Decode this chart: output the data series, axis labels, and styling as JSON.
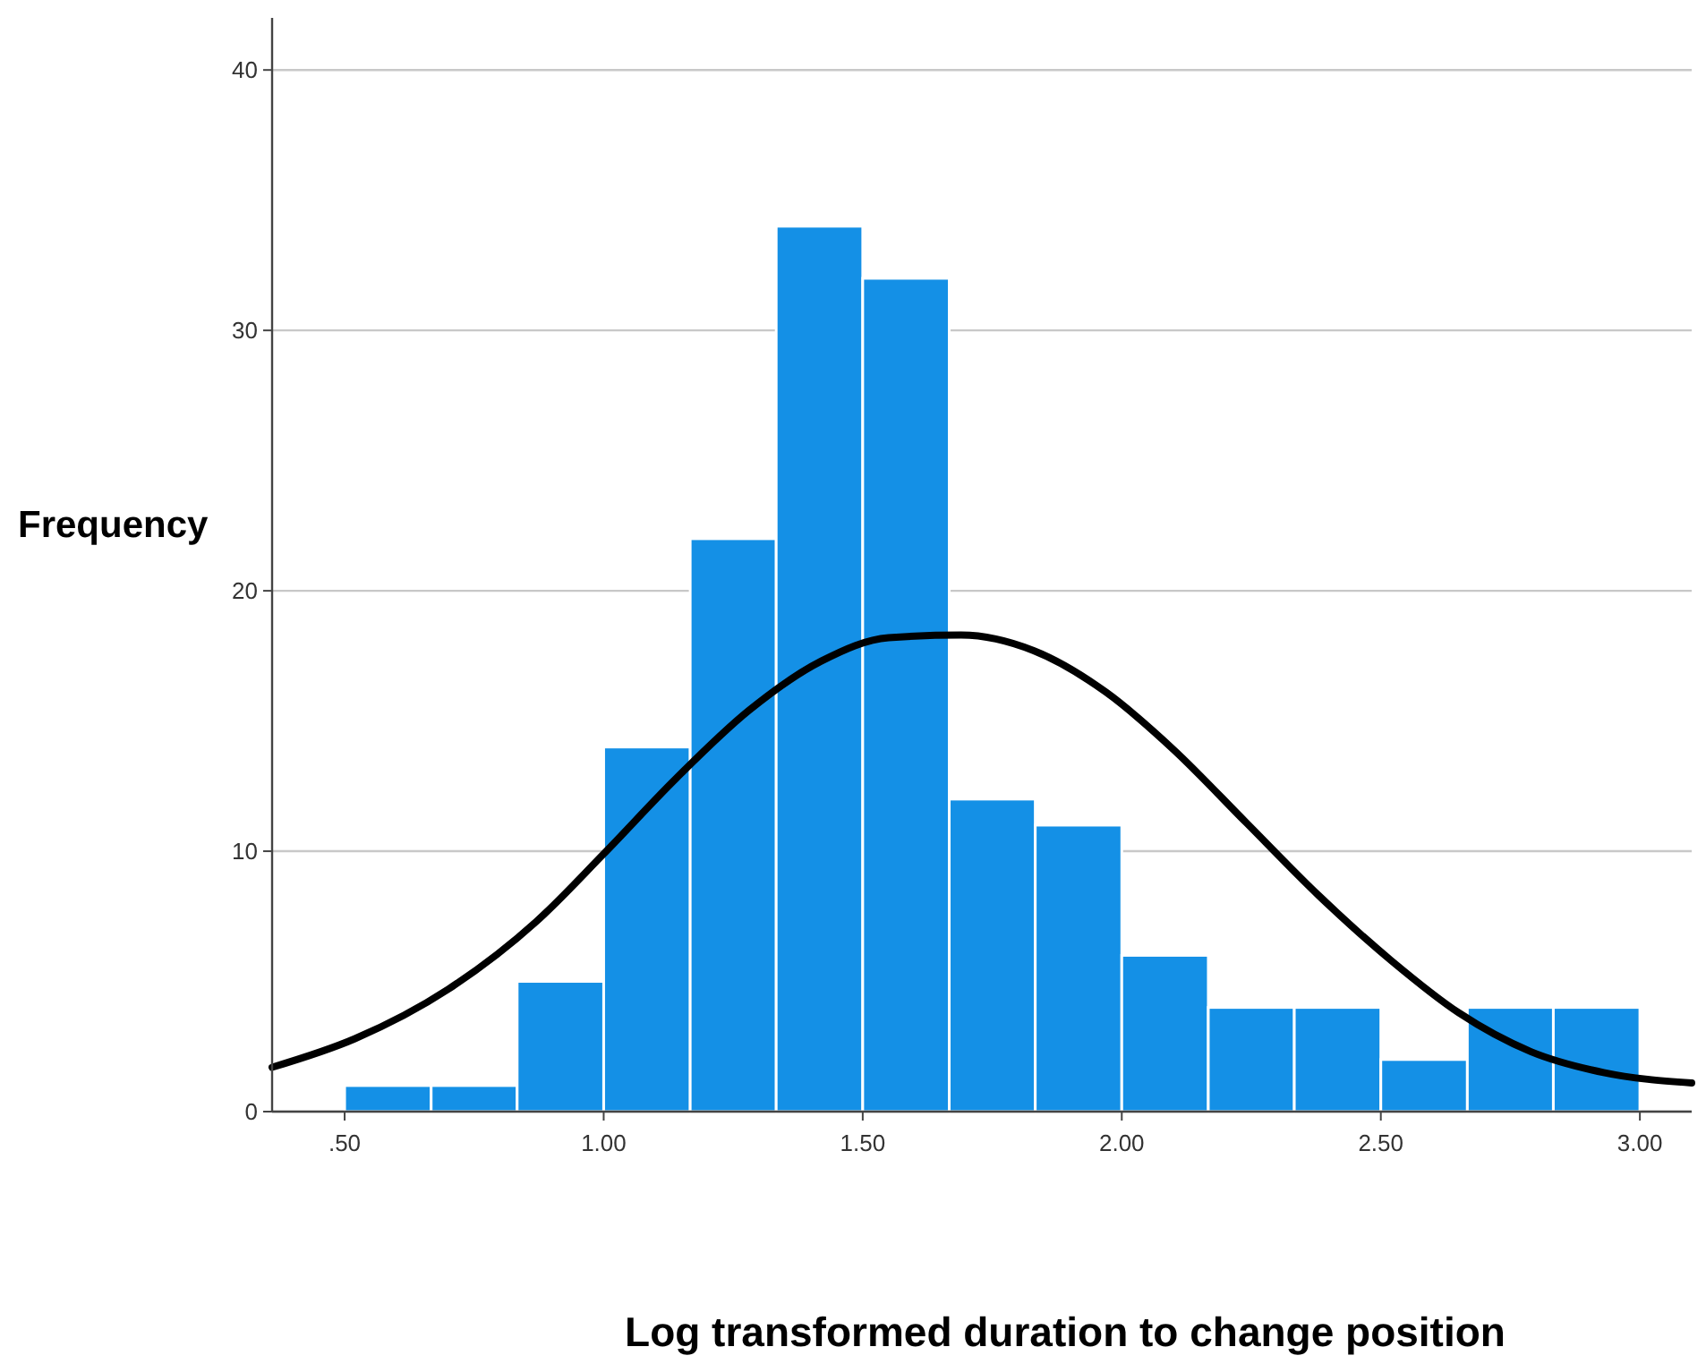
{
  "chart_data": {
    "type": "histogram",
    "xlabel": "Log transformed duration to change position",
    "ylabel": "Frequency",
    "bins": [
      0.5,
      0.667,
      0.833,
      1.0,
      1.167,
      1.333,
      1.5,
      1.667,
      1.833,
      2.0,
      2.167,
      2.333,
      2.5,
      2.667,
      2.833,
      3.0
    ],
    "values": [
      1,
      1,
      5,
      14,
      22,
      34,
      32,
      12,
      11,
      6,
      4,
      4,
      2,
      4,
      4
    ],
    "color": "#1490e6",
    "series": [
      {
        "type": "line",
        "color": "#000000",
        "x": [
          0.36,
          0.52,
          0.7,
          0.87,
          1.0,
          1.14,
          1.28,
          1.42,
          1.55,
          1.69,
          1.83,
          1.97,
          2.1,
          2.24,
          2.38,
          2.52,
          2.65,
          2.79,
          2.93,
          3.1
        ],
        "values": [
          1.7,
          2.8,
          4.7,
          7.3,
          9.9,
          12.8,
          15.4,
          17.3,
          18.2,
          18.3,
          17.7,
          16.1,
          13.9,
          11.1,
          8.3,
          5.8,
          3.8,
          2.3,
          1.5,
          1.1
        ]
      }
    ],
    "xlim": [
      0.36,
      3.1
    ],
    "ylim": [
      0,
      42
    ],
    "xticks": [
      {
        "value": 0.5,
        "label": ".50"
      },
      {
        "value": 1,
        "label": "1.00"
      },
      {
        "value": 1.5,
        "label": "1.50"
      },
      {
        "value": 2,
        "label": "2.00"
      },
      {
        "value": 2.5,
        "label": "2.50"
      },
      {
        "value": 3,
        "label": "3.00"
      }
    ],
    "yticks": [
      0,
      10,
      20,
      30,
      40
    ],
    "grid": "y"
  }
}
